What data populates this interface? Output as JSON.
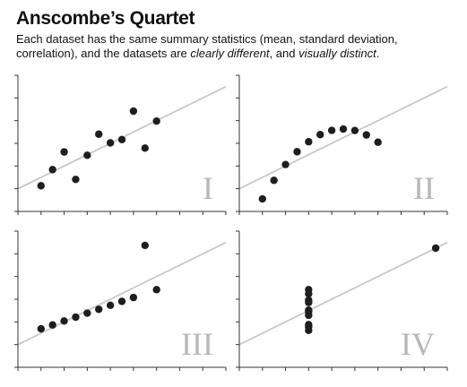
{
  "title": "Anscombe’s Quartet",
  "subtitle": {
    "part1": "Each dataset has the same summary statistics (mean, standard deviation, correlation), and the datasets are ",
    "em1": "clearly different",
    "part2": ", and ",
    "em2": "visually distinct",
    "part3": "."
  },
  "chart_data": [
    {
      "type": "scatter",
      "label": "I",
      "xlim": [
        2,
        20
      ],
      "ylim": [
        2,
        14
      ],
      "regression": {
        "slope": 0.5,
        "intercept": 3
      },
      "points": [
        [
          10,
          8.04
        ],
        [
          8,
          6.95
        ],
        [
          13,
          7.58
        ],
        [
          9,
          8.81
        ],
        [
          11,
          8.33
        ],
        [
          14,
          9.96
        ],
        [
          6,
          7.24
        ],
        [
          4,
          4.26
        ],
        [
          12,
          10.84
        ],
        [
          7,
          4.82
        ],
        [
          5,
          5.68
        ]
      ]
    },
    {
      "type": "scatter",
      "label": "II",
      "xlim": [
        2,
        20
      ],
      "ylim": [
        2,
        14
      ],
      "regression": {
        "slope": 0.5,
        "intercept": 3
      },
      "points": [
        [
          10,
          9.14
        ],
        [
          8,
          8.14
        ],
        [
          13,
          8.74
        ],
        [
          9,
          8.77
        ],
        [
          11,
          9.26
        ],
        [
          14,
          8.1
        ],
        [
          6,
          6.13
        ],
        [
          4,
          3.1
        ],
        [
          12,
          9.13
        ],
        [
          7,
          7.26
        ],
        [
          5,
          4.74
        ]
      ]
    },
    {
      "type": "scatter",
      "label": "III",
      "xlim": [
        2,
        20
      ],
      "ylim": [
        2,
        14
      ],
      "regression": {
        "slope": 0.5,
        "intercept": 3
      },
      "points": [
        [
          10,
          7.46
        ],
        [
          8,
          6.77
        ],
        [
          13,
          12.74
        ],
        [
          9,
          7.11
        ],
        [
          11,
          7.81
        ],
        [
          14,
          8.84
        ],
        [
          6,
          6.08
        ],
        [
          4,
          5.39
        ],
        [
          12,
          8.15
        ],
        [
          7,
          6.42
        ],
        [
          5,
          5.73
        ]
      ]
    },
    {
      "type": "scatter",
      "label": "IV",
      "xlim": [
        2,
        20
      ],
      "ylim": [
        2,
        14
      ],
      "regression": {
        "slope": 0.5,
        "intercept": 3
      },
      "points": [
        [
          8,
          6.58
        ],
        [
          8,
          5.76
        ],
        [
          8,
          7.71
        ],
        [
          8,
          8.84
        ],
        [
          8,
          8.47
        ],
        [
          8,
          7.04
        ],
        [
          8,
          5.25
        ],
        [
          19,
          12.5
        ],
        [
          8,
          5.56
        ],
        [
          8,
          7.91
        ],
        [
          8,
          6.89
        ]
      ]
    }
  ]
}
